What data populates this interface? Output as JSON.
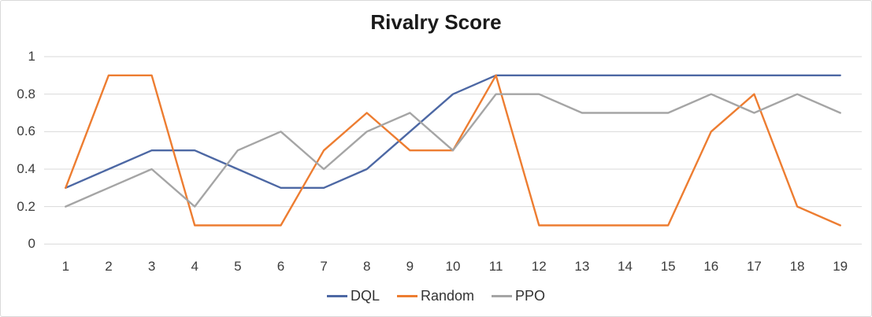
{
  "chart_data": {
    "type": "line",
    "title": "Rivalry Score",
    "x": [
      1,
      2,
      3,
      4,
      5,
      6,
      7,
      8,
      9,
      10,
      11,
      12,
      13,
      14,
      15,
      16,
      17,
      18,
      19
    ],
    "series": [
      {
        "name": "DQL",
        "color": "#4d68a4",
        "values": [
          0.3,
          0.4,
          0.5,
          0.5,
          0.4,
          0.3,
          0.3,
          0.4,
          0.6,
          0.8,
          0.9,
          0.9,
          0.9,
          0.9,
          0.9,
          0.9,
          0.9,
          0.9,
          0.9
        ]
      },
      {
        "name": "Random",
        "color": "#ed7d31",
        "values": [
          0.3,
          0.9,
          0.9,
          0.1,
          0.1,
          0.1,
          0.5,
          0.7,
          0.5,
          0.5,
          0.9,
          0.1,
          0.1,
          0.1,
          0.1,
          0.6,
          0.8,
          0.2,
          0.1
        ]
      },
      {
        "name": "PPO",
        "color": "#a5a5a5",
        "values": [
          0.2,
          0.3,
          0.4,
          0.2,
          0.5,
          0.6,
          0.4,
          0.6,
          0.7,
          0.5,
          0.8,
          0.8,
          0.7,
          0.7,
          0.7,
          0.8,
          0.7,
          0.8,
          0.7
        ]
      }
    ],
    "xlabel": "",
    "ylabel": "",
    "ylim": [
      0,
      1
    ],
    "yticks": [
      0,
      0.2,
      0.4,
      0.6,
      0.8,
      1
    ],
    "ytick_labels": [
      "0",
      "0.2",
      "0.4",
      "0.6",
      "0.8",
      "1"
    ],
    "grid": "horizontal",
    "gridline_color": "#d9d9d9",
    "legend_position": "bottom",
    "legend_entries": [
      "DQL",
      "Random",
      "PPO"
    ]
  }
}
